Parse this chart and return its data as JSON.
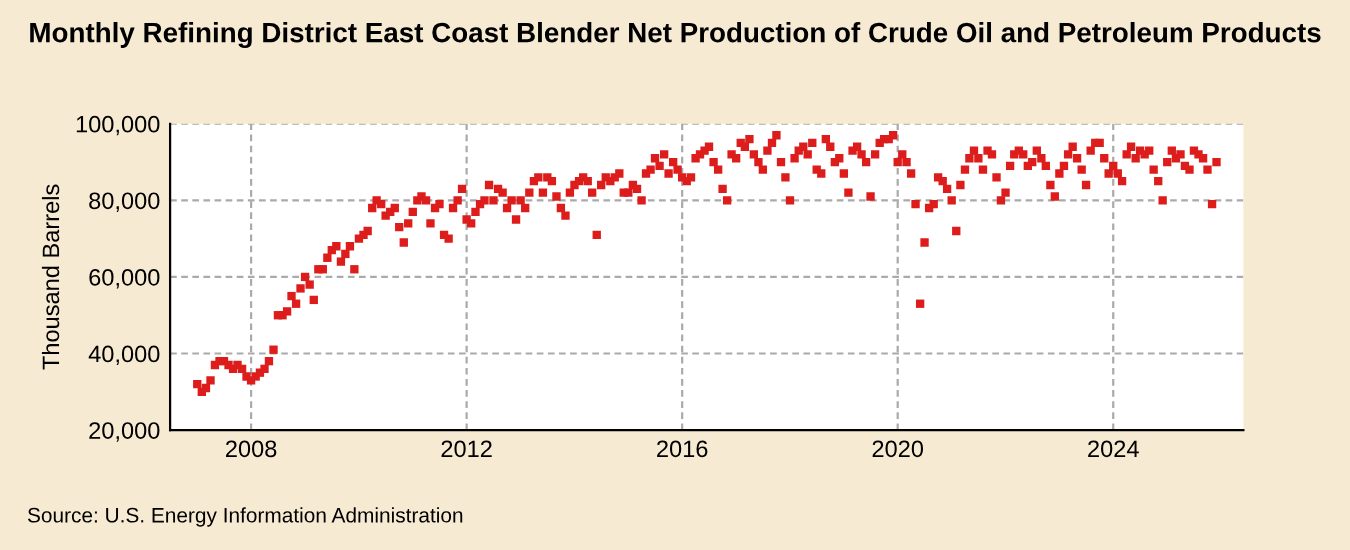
{
  "chart_data": {
    "type": "scatter",
    "title": "Monthly Refining District East Coast Blender Net Production of Crude Oil and Petroleum Products",
    "ylabel": "Thousand Barrels",
    "annotations": [
      "Source: U.S. Energy Information Administration"
    ],
    "x": [
      "2007-01",
      "2007-02",
      "2007-03",
      "2007-04",
      "2007-05",
      "2007-06",
      "2007-07",
      "2007-08",
      "2007-09",
      "2007-10",
      "2007-11",
      "2007-12",
      "2008-01",
      "2008-02",
      "2008-03",
      "2008-04",
      "2008-05",
      "2008-06",
      "2008-07",
      "2008-08",
      "2008-09",
      "2008-10",
      "2008-11",
      "2008-12",
      "2009-01",
      "2009-02",
      "2009-03",
      "2009-04",
      "2009-05",
      "2009-06",
      "2009-07",
      "2009-08",
      "2009-09",
      "2009-10",
      "2009-11",
      "2009-12",
      "2010-01",
      "2010-02",
      "2010-03",
      "2010-04",
      "2010-05",
      "2010-06",
      "2010-07",
      "2010-08",
      "2010-09",
      "2010-10",
      "2010-11",
      "2010-12",
      "2011-01",
      "2011-02",
      "2011-03",
      "2011-04",
      "2011-05",
      "2011-06",
      "2011-07",
      "2011-08",
      "2011-09",
      "2011-10",
      "2011-11",
      "2011-12",
      "2012-01",
      "2012-02",
      "2012-03",
      "2012-04",
      "2012-05",
      "2012-06",
      "2012-07",
      "2012-08",
      "2012-09",
      "2012-10",
      "2012-11",
      "2012-12",
      "2013-01",
      "2013-02",
      "2013-03",
      "2013-04",
      "2013-05",
      "2013-06",
      "2013-07",
      "2013-08",
      "2013-09",
      "2013-10",
      "2013-11",
      "2013-12",
      "2014-01",
      "2014-02",
      "2014-03",
      "2014-04",
      "2014-05",
      "2014-06",
      "2014-07",
      "2014-08",
      "2014-09",
      "2014-10",
      "2014-11",
      "2014-12",
      "2015-01",
      "2015-02",
      "2015-03",
      "2015-04",
      "2015-05",
      "2015-06",
      "2015-07",
      "2015-08",
      "2015-09",
      "2015-10",
      "2015-11",
      "2015-12",
      "2016-01",
      "2016-02",
      "2016-03",
      "2016-04",
      "2016-05",
      "2016-06",
      "2016-07",
      "2016-08",
      "2016-09",
      "2016-10",
      "2016-11",
      "2016-12",
      "2017-01",
      "2017-02",
      "2017-03",
      "2017-04",
      "2017-05",
      "2017-06",
      "2017-07",
      "2017-08",
      "2017-09",
      "2017-10",
      "2017-11",
      "2017-12",
      "2018-01",
      "2018-02",
      "2018-03",
      "2018-04",
      "2018-05",
      "2018-06",
      "2018-07",
      "2018-08",
      "2018-09",
      "2018-10",
      "2018-11",
      "2018-12",
      "2019-01",
      "2019-02",
      "2019-03",
      "2019-04",
      "2019-05",
      "2019-06",
      "2019-07",
      "2019-08",
      "2019-09",
      "2019-10",
      "2019-11",
      "2019-12",
      "2020-01",
      "2020-02",
      "2020-03",
      "2020-04",
      "2020-05",
      "2020-06",
      "2020-07",
      "2020-08",
      "2020-09",
      "2020-10",
      "2020-11",
      "2020-12",
      "2021-01",
      "2021-02",
      "2021-03",
      "2021-04",
      "2021-05",
      "2021-06",
      "2021-07",
      "2021-08",
      "2021-09",
      "2021-10",
      "2021-11",
      "2021-12",
      "2022-01",
      "2022-02",
      "2022-03",
      "2022-04",
      "2022-05",
      "2022-06",
      "2022-07",
      "2022-08",
      "2022-09",
      "2022-10",
      "2022-11",
      "2022-12",
      "2023-01",
      "2023-02",
      "2023-03",
      "2023-04",
      "2023-05",
      "2023-06",
      "2023-07",
      "2023-08",
      "2023-09",
      "2023-10",
      "2023-11",
      "2023-12",
      "2024-01",
      "2024-02",
      "2024-03",
      "2024-04",
      "2024-05",
      "2024-06",
      "2024-07",
      "2024-08",
      "2024-09",
      "2024-10",
      "2024-11",
      "2024-12",
      "2025-01",
      "2025-02",
      "2025-03",
      "2025-04",
      "2025-05",
      "2025-06",
      "2025-07",
      "2025-08",
      "2025-09",
      "2025-10",
      "2025-11",
      "2025-12"
    ],
    "series": [
      {
        "color": "#dd1c1c",
        "values": [
          32000,
          30000,
          31000,
          33000,
          37000,
          38000,
          38000,
          37000,
          36000,
          37000,
          36000,
          34000,
          33000,
          34000,
          35000,
          36000,
          38000,
          41000,
          50000,
          50000,
          51000,
          55000,
          53000,
          57000,
          60000,
          58000,
          54000,
          62000,
          62000,
          65000,
          67000,
          68000,
          64000,
          66000,
          68000,
          62000,
          70000,
          71000,
          72000,
          78000,
          80000,
          79000,
          76000,
          77000,
          78000,
          73000,
          69000,
          74000,
          77000,
          80000,
          81000,
          80000,
          74000,
          78000,
          79000,
          71000,
          70000,
          78000,
          80000,
          83000,
          75000,
          74000,
          77000,
          79000,
          80000,
          84000,
          80000,
          83000,
          82000,
          78000,
          80000,
          75000,
          80000,
          78000,
          82000,
          85000,
          86000,
          82000,
          86000,
          85000,
          81000,
          78000,
          76000,
          82000,
          84000,
          85000,
          86000,
          85000,
          82000,
          71000,
          84000,
          86000,
          85000,
          86000,
          87000,
          82000,
          82000,
          84000,
          83000,
          80000,
          87000,
          88000,
          91000,
          89000,
          92000,
          87000,
          90000,
          88000,
          86000,
          85000,
          86000,
          91000,
          92000,
          93000,
          94000,
          90000,
          88000,
          83000,
          80000,
          92000,
          91000,
          95000,
          94000,
          96000,
          92000,
          90000,
          88000,
          93000,
          95000,
          97000,
          90000,
          86000,
          80000,
          91000,
          93000,
          94000,
          92000,
          95000,
          88000,
          87000,
          96000,
          94000,
          90000,
          91000,
          87000,
          82000,
          93000,
          94000,
          92000,
          90000,
          81000,
          92000,
          95000,
          96000,
          96000,
          97000,
          90000,
          92000,
          90000,
          87000,
          79000,
          53000,
          69000,
          78000,
          79000,
          86000,
          85000,
          83000,
          80000,
          72000,
          84000,
          88000,
          91000,
          93000,
          91000,
          88000,
          93000,
          92000,
          86000,
          80000,
          82000,
          89000,
          92000,
          93000,
          92000,
          89000,
          90000,
          93000,
          91000,
          89000,
          84000,
          81000,
          87000,
          89000,
          92000,
          94000,
          91000,
          88000,
          84000,
          93000,
          95000,
          95000,
          91000,
          87000,
          89000,
          87000,
          85000,
          92000,
          94000,
          91000,
          93000,
          92000,
          93000,
          88000,
          85000,
          80000,
          90000,
          93000,
          91000,
          92000,
          89000,
          88000,
          93000,
          92000,
          91000,
          88000,
          79000,
          90000
        ]
      }
    ],
    "xlim": [
      "2006-07",
      "2026-06"
    ],
    "xticks": [
      {
        "value": "2008",
        "label": "2008"
      },
      {
        "value": "2012",
        "label": "2012"
      },
      {
        "value": "2016",
        "label": "2016"
      },
      {
        "value": "2020",
        "label": "2020"
      },
      {
        "value": "2024",
        "label": "2024"
      }
    ],
    "ylim": [
      20000,
      100000
    ],
    "yticks": [
      {
        "value": 20000,
        "label": "20,000"
      },
      {
        "value": 40000,
        "label": "40,000"
      },
      {
        "value": 60000,
        "label": "60,000"
      },
      {
        "value": 80000,
        "label": "80,000"
      },
      {
        "value": 100000,
        "label": "100,000"
      }
    ],
    "grid": true,
    "marker": "square"
  }
}
